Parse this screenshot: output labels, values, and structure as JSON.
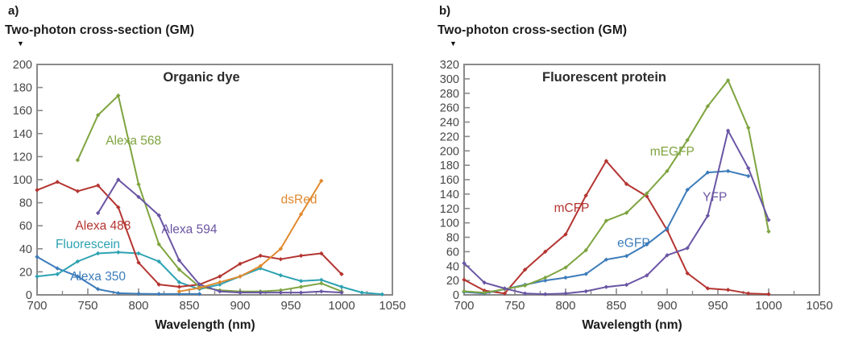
{
  "style": {
    "axis_color": "#8a8a8a",
    "tick_label_color": "#474747",
    "title_color": "#2b2b2b",
    "text_color": "#1a1a1a"
  },
  "panels": [
    {
      "panel_label": "a)",
      "y_axis_title": "Two-photon cross-section (GM)",
      "marker_icon": "▼"
    },
    {
      "panel_label": "b)",
      "y_axis_title": "Two-photon cross-section (GM)",
      "marker_icon": "▼"
    }
  ],
  "chart_data": [
    {
      "type": "line",
      "title": "Organic dye",
      "xlabel": "Wavelength (nm)",
      "ylabel": "Two-photon cross-section (GM)",
      "xlim": [
        700,
        1050
      ],
      "ylim": [
        0,
        200
      ],
      "x_major_tick": 50,
      "x_minor_tick": 25,
      "y_tick": 20,
      "grid": false,
      "legend_position": "inline-labels",
      "series": [
        {
          "name": "Alexa 350",
          "color": "#3d7cba",
          "label_x": 760,
          "label_y": 16,
          "points": [
            [
              700,
              33
            ],
            [
              720,
              23
            ],
            [
              740,
              16
            ],
            [
              760,
              5
            ],
            [
              780,
              1.5
            ],
            [
              800,
              1
            ],
            [
              820,
              0.8
            ],
            [
              840,
              0.8
            ],
            [
              860,
              0.8
            ]
          ]
        },
        {
          "name": "Fluorescein",
          "color": "#2da2b2",
          "label_x": 750,
          "label_y": 44,
          "points": [
            [
              700,
              16
            ],
            [
              720,
              18
            ],
            [
              740,
              29
            ],
            [
              760,
              36
            ],
            [
              780,
              37
            ],
            [
              800,
              36
            ],
            [
              820,
              29
            ],
            [
              840,
              11
            ],
            [
              860,
              5
            ],
            [
              880,
              9
            ],
            [
              900,
              16
            ],
            [
              920,
              23
            ],
            [
              940,
              17
            ],
            [
              960,
              12
            ],
            [
              980,
              13
            ],
            [
              1000,
              7
            ],
            [
              1020,
              2
            ],
            [
              1040,
              0.5
            ]
          ]
        },
        {
          "name": "Alexa 488",
          "color": "#b43531",
          "label_x": 765,
          "label_y": 60,
          "points": [
            [
              700,
              91
            ],
            [
              720,
              98
            ],
            [
              740,
              90
            ],
            [
              760,
              95
            ],
            [
              780,
              76
            ],
            [
              800,
              28
            ],
            [
              820,
              9
            ],
            [
              840,
              7
            ],
            [
              860,
              9
            ],
            [
              880,
              16
            ],
            [
              900,
              27
            ],
            [
              920,
              34
            ],
            [
              940,
              31
            ],
            [
              960,
              34
            ],
            [
              980,
              36
            ],
            [
              1000,
              18
            ]
          ]
        },
        {
          "name": "Alexa 568",
          "color": "#7ea43f",
          "label_x": 795,
          "label_y": 134,
          "points": [
            [
              740,
              117
            ],
            [
              760,
              156
            ],
            [
              780,
              173
            ],
            [
              800,
              96
            ],
            [
              820,
              44
            ],
            [
              840,
              22
            ],
            [
              860,
              7
            ],
            [
              880,
              4
            ],
            [
              900,
              3
            ],
            [
              920,
              3
            ],
            [
              940,
              4
            ],
            [
              960,
              7
            ],
            [
              980,
              10
            ],
            [
              1000,
              3
            ]
          ]
        },
        {
          "name": "Alexa 594",
          "color": "#6a55a4",
          "label_x": 850,
          "label_y": 57,
          "points": [
            [
              760,
              71
            ],
            [
              780,
              100
            ],
            [
              800,
              85
            ],
            [
              820,
              69
            ],
            [
              840,
              30
            ],
            [
              860,
              9
            ],
            [
              880,
              3
            ],
            [
              900,
              2
            ],
            [
              920,
              2
            ],
            [
              940,
              2
            ],
            [
              960,
              2
            ],
            [
              980,
              3
            ],
            [
              1000,
              2
            ]
          ]
        },
        {
          "name": "dsRed",
          "color": "#e08a2f",
          "label_x": 958,
          "label_y": 83,
          "points": [
            [
              840,
              3
            ],
            [
              860,
              6
            ],
            [
              880,
              11
            ],
            [
              900,
              16
            ],
            [
              920,
              25
            ],
            [
              940,
              40
            ],
            [
              960,
              70
            ],
            [
              980,
              99
            ]
          ]
        }
      ]
    },
    {
      "type": "line",
      "title": "Fluorescent protein",
      "xlabel": "Wavelength (nm)",
      "ylabel": "Two-photon cross-section (GM)",
      "xlim": [
        700,
        1050
      ],
      "ylim": [
        0,
        320
      ],
      "x_major_tick": 50,
      "x_minor_tick": 25,
      "y_tick": 20,
      "grid": false,
      "legend_position": "inline-labels",
      "series": [
        {
          "name": "mCFP",
          "color": "#b43531",
          "label_x": 806,
          "label_y": 121,
          "points": [
            [
              700,
              21
            ],
            [
              720,
              6
            ],
            [
              740,
              2
            ],
            [
              760,
              35
            ],
            [
              780,
              60
            ],
            [
              800,
              84
            ],
            [
              820,
              138
            ],
            [
              840,
              186
            ],
            [
              860,
              154
            ],
            [
              880,
              137
            ],
            [
              900,
              90
            ],
            [
              920,
              30
            ],
            [
              940,
              9
            ],
            [
              960,
              7
            ],
            [
              980,
              2
            ],
            [
              1000,
              1
            ]
          ]
        },
        {
          "name": "eGFP",
          "color": "#3d7cba",
          "label_x": 867,
          "label_y": 72,
          "points": [
            [
              700,
              4
            ],
            [
              720,
              2
            ],
            [
              740,
              8
            ],
            [
              760,
              14
            ],
            [
              780,
              20
            ],
            [
              800,
              24
            ],
            [
              820,
              29
            ],
            [
              840,
              49
            ],
            [
              860,
              54
            ],
            [
              880,
              70
            ],
            [
              900,
              92
            ],
            [
              920,
              146
            ],
            [
              940,
              170
            ],
            [
              960,
              172
            ],
            [
              980,
              165
            ]
          ]
        },
        {
          "name": "mEGFP",
          "color": "#7ea43f",
          "label_x": 905,
          "label_y": 199,
          "points": [
            [
              700,
              5
            ],
            [
              720,
              3
            ],
            [
              740,
              8
            ],
            [
              760,
              13
            ],
            [
              780,
              24
            ],
            [
              800,
              38
            ],
            [
              820,
              62
            ],
            [
              840,
              103
            ],
            [
              860,
              114
            ],
            [
              880,
              141
            ],
            [
              900,
              172
            ],
            [
              920,
              215
            ],
            [
              940,
              262
            ],
            [
              960,
              298
            ],
            [
              980,
              232
            ],
            [
              1000,
              88
            ]
          ]
        },
        {
          "name": "YFP",
          "color": "#6a55a4",
          "label_x": 947,
          "label_y": 136,
          "points": [
            [
              700,
              44
            ],
            [
              720,
              17
            ],
            [
              740,
              9
            ],
            [
              760,
              2
            ],
            [
              780,
              1
            ],
            [
              800,
              2
            ],
            [
              820,
              5
            ],
            [
              840,
              11
            ],
            [
              860,
              14
            ],
            [
              880,
              27
            ],
            [
              900,
              55
            ],
            [
              920,
              65
            ],
            [
              940,
              110
            ],
            [
              960,
              228
            ],
            [
              980,
              176
            ],
            [
              1000,
              104
            ]
          ]
        }
      ]
    }
  ]
}
